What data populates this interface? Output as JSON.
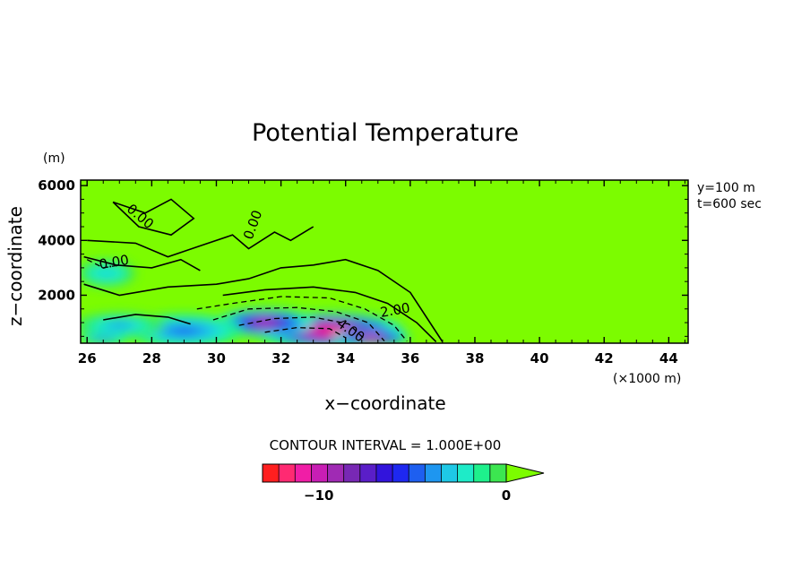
{
  "chart_data": {
    "type": "heatmap",
    "title": "Potential Temperature",
    "xlabel": "x−coordinate",
    "ylabel": "z−coordinate",
    "x_unit": "(×1000 m)",
    "y_unit": "(m)",
    "xlim": [
      25.8,
      44.6
    ],
    "ylim": [
      250,
      6200
    ],
    "x_ticks": [
      26,
      28,
      30,
      32,
      34,
      36,
      38,
      40,
      42,
      44
    ],
    "x_tick_labels": [
      "26",
      "28",
      "30",
      "32",
      "34",
      "36",
      "38",
      "40",
      "42",
      "44"
    ],
    "y_ticks": [
      2000,
      4000,
      6000
    ],
    "y_tick_labels": [
      "2000",
      "4000",
      "6000"
    ],
    "annotations": [
      "y=100 m",
      "t=600 sec"
    ],
    "contour_interval_label": "CONTOUR INTERVAL = 1.000E+00",
    "contour_interval": 1.0,
    "contour_labels": [
      "0.00",
      "0.00",
      "0.00",
      "2.00",
      "4.00"
    ],
    "colorbar": {
      "min": -13,
      "max": 0,
      "ticks": [
        -10,
        0
      ],
      "tick_labels": [
        "−10",
        "0"
      ],
      "extend": "max",
      "colors": [
        "#ff1f1f",
        "#ff2a72",
        "#f01ea6",
        "#c81eb4",
        "#a02ab4",
        "#7828b4",
        "#5a1ec8",
        "#3214dc",
        "#1e28f0",
        "#1e5ff0",
        "#1e96f0",
        "#1ec8e6",
        "#1eebc8",
        "#1ef08c",
        "#3ce650"
      ],
      "over_color": "#7cfc00"
    },
    "field_blobs": [
      {
        "x": 33.5,
        "z": 700,
        "rx": 2.3,
        "rz": 650,
        "value": -12
      },
      {
        "x": 31.5,
        "z": 1000,
        "rx": 1.5,
        "rz": 500,
        "value": -10
      },
      {
        "x": 34.8,
        "z": 450,
        "rx": 1.2,
        "rz": 300,
        "value": -11
      },
      {
        "x": 29.0,
        "z": 700,
        "rx": 1.8,
        "rz": 600,
        "value": -5
      },
      {
        "x": 26.6,
        "z": 2800,
        "rx": 0.9,
        "rz": 500,
        "value": -3
      },
      {
        "x": 27.0,
        "z": 900,
        "rx": 1.4,
        "rz": 450,
        "value": -4
      },
      {
        "x": 26.5,
        "z": 400,
        "rx": 0.8,
        "rz": 200,
        "value": -5
      }
    ],
    "contours": [
      {
        "style": "solid",
        "points": [
          [
            30.2,
            2000
          ],
          [
            31.5,
            2200
          ],
          [
            33.0,
            2300
          ],
          [
            34.3,
            2100
          ],
          [
            35.3,
            1700
          ],
          [
            36.2,
            1000
          ],
          [
            36.8,
            300
          ]
        ]
      },
      {
        "style": "dashed",
        "points": [
          [
            29.4,
            1500
          ],
          [
            30.5,
            1700
          ],
          [
            32.0,
            1950
          ],
          [
            33.5,
            1900
          ],
          [
            34.6,
            1500
          ],
          [
            35.5,
            900
          ],
          [
            35.9,
            320
          ]
        ]
      },
      {
        "style": "dashed",
        "points": [
          [
            29.9,
            1100
          ],
          [
            31.0,
            1500
          ],
          [
            32.5,
            1550
          ],
          [
            33.7,
            1400
          ],
          [
            34.7,
            1000
          ],
          [
            35.2,
            330
          ]
        ]
      },
      {
        "style": "dashed",
        "points": [
          [
            30.7,
            900
          ],
          [
            31.8,
            1150
          ],
          [
            33.0,
            1200
          ],
          [
            34.1,
            950
          ],
          [
            34.6,
            380
          ]
        ]
      },
      {
        "style": "dashed",
        "points": [
          [
            31.5,
            650
          ],
          [
            32.5,
            820
          ],
          [
            33.5,
            780
          ],
          [
            34.0,
            450
          ]
        ]
      },
      {
        "style": "solid",
        "points": [
          [
            25.9,
            2400
          ],
          [
            27.0,
            2000
          ],
          [
            28.5,
            2300
          ],
          [
            30.0,
            2400
          ],
          [
            31.0,
            2600
          ],
          [
            32.0,
            3000
          ],
          [
            33.0,
            3100
          ],
          [
            34.0,
            3300
          ],
          [
            35.0,
            2900
          ],
          [
            36.0,
            2100
          ],
          [
            37.0,
            300
          ]
        ]
      },
      {
        "style": "solid",
        "points": [
          [
            26.5,
            1100
          ],
          [
            27.5,
            1300
          ],
          [
            28.5,
            1200
          ],
          [
            29.2,
            950
          ]
        ]
      },
      {
        "style": "solid",
        "points": [
          [
            26.0,
            4000
          ],
          [
            27.5,
            3900
          ],
          [
            28.5,
            3400
          ],
          [
            29.5,
            3800
          ],
          [
            30.5,
            4200
          ],
          [
            31.0,
            3700
          ],
          [
            31.8,
            4300
          ],
          [
            32.3,
            4000
          ],
          [
            33.0,
            4500
          ]
        ]
      },
      {
        "style": "solid",
        "points": [
          [
            26.8,
            5400
          ],
          [
            27.8,
            5000
          ],
          [
            28.6,
            5500
          ],
          [
            29.3,
            4800
          ],
          [
            28.6,
            4200
          ],
          [
            27.6,
            4500
          ],
          [
            26.8,
            5400
          ]
        ]
      },
      {
        "style": "solid",
        "points": [
          [
            25.9,
            3400
          ],
          [
            26.9,
            3100
          ],
          [
            28.0,
            3000
          ],
          [
            28.9,
            3300
          ],
          [
            29.5,
            2900
          ]
        ]
      },
      {
        "style": "dashed",
        "points": [
          [
            26.0,
            3300
          ],
          [
            26.5,
            3000
          ],
          [
            27.0,
            3100
          ]
        ]
      }
    ]
  }
}
